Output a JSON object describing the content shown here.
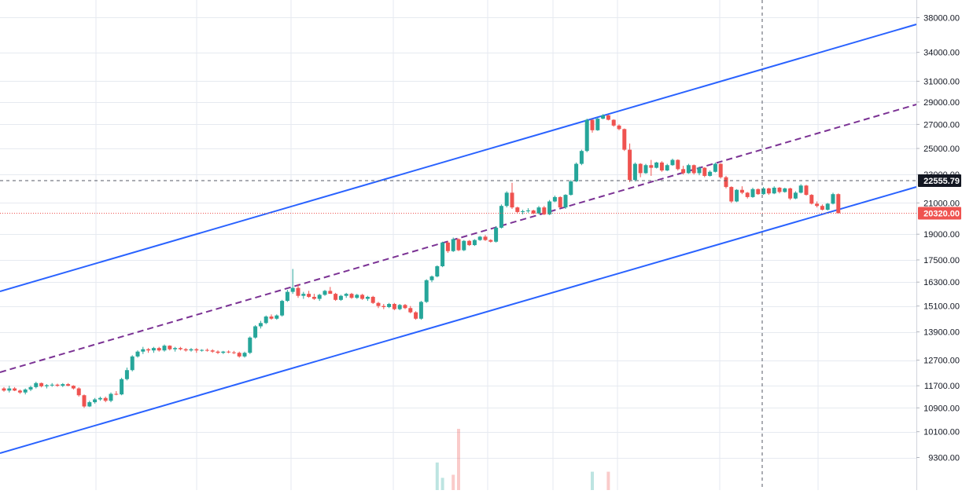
{
  "chart_data": {
    "type": "candlestick",
    "scale": "log",
    "grid": true,
    "ylim": [
      8900,
      40000
    ],
    "y_ticks": [
      "38000.00",
      "34000.00",
      "31000.00",
      "29000.00",
      "27000.00",
      "25000.00",
      "23000.00",
      "21000.00",
      "19000.00",
      "17500.00",
      "16300.00",
      "15100.00",
      "13900.00",
      "12700.00",
      "11700.00",
      "10900.00",
      "10100.00",
      "9300.00"
    ],
    "price_tags": {
      "crosshair": "22555.79",
      "last": "20320.00"
    },
    "colors": {
      "up": "#26a69a",
      "down": "#ef5350",
      "channel": "#2962ff",
      "midline": "#7b3294",
      "grid": "#e6eaf0",
      "crosshair": "#555a66",
      "last_line": "#ef5350",
      "axis_tag_bg": "#131722"
    },
    "candles": [
      [
        11600,
        11650,
        11480,
        11520
      ],
      [
        11520,
        11700,
        11450,
        11600
      ],
      [
        11600,
        11650,
        11500,
        11520
      ],
      [
        11520,
        11560,
        11400,
        11450
      ],
      [
        11450,
        11600,
        11380,
        11560
      ],
      [
        11560,
        11700,
        11500,
        11650
      ],
      [
        11650,
        11850,
        11600,
        11800
      ],
      [
        11800,
        11820,
        11640,
        11680
      ],
      [
        11680,
        11760,
        11600,
        11720
      ],
      [
        11720,
        11800,
        11660,
        11740
      ],
      [
        11740,
        11780,
        11660,
        11700
      ],
      [
        11700,
        11800,
        11650,
        11760
      ],
      [
        11760,
        11800,
        11680,
        11700
      ],
      [
        11700,
        11720,
        11560,
        11600
      ],
      [
        11600,
        11640,
        11300,
        11350
      ],
      [
        11350,
        11380,
        10900,
        10950
      ],
      [
        10950,
        11150,
        10930,
        11100
      ],
      [
        11100,
        11250,
        11050,
        11200
      ],
      [
        11200,
        11300,
        11150,
        11250
      ],
      [
        11250,
        11300,
        11100,
        11150
      ],
      [
        11150,
        11450,
        11100,
        11400
      ],
      [
        11400,
        11500,
        11350,
        11380
      ],
      [
        11380,
        12000,
        11350,
        11950
      ],
      [
        11950,
        12400,
        11900,
        12300
      ],
      [
        12300,
        12900,
        12250,
        12850
      ],
      [
        12850,
        13100,
        12800,
        13050
      ],
      [
        13050,
        13250,
        12950,
        13150
      ],
      [
        13150,
        13200,
        13000,
        13100
      ],
      [
        13100,
        13250,
        13000,
        13200
      ],
      [
        13200,
        13250,
        13050,
        13100
      ],
      [
        13100,
        13350,
        13050,
        13300
      ],
      [
        13300,
        13320,
        13100,
        13150
      ],
      [
        13150,
        13250,
        13050,
        13200
      ],
      [
        13200,
        13250,
        13100,
        13150
      ],
      [
        13150,
        13200,
        13050,
        13100
      ],
      [
        13100,
        13200,
        13050,
        13150
      ],
      [
        13150,
        13200,
        13000,
        13100
      ],
      [
        13100,
        13150,
        13050,
        13120
      ],
      [
        13120,
        13180,
        13050,
        13100
      ],
      [
        13100,
        13150,
        13000,
        13050
      ],
      [
        13050,
        13100,
        12950,
        13000
      ],
      [
        13000,
        13080,
        12950,
        13050
      ],
      [
        13050,
        13100,
        12980,
        13020
      ],
      [
        13020,
        13080,
        12950,
        13000
      ],
      [
        13000,
        13050,
        12800,
        12850
      ],
      [
        12850,
        13050,
        12800,
        13000
      ],
      [
        13000,
        13700,
        12950,
        13650
      ],
      [
        13650,
        14200,
        13600,
        14150
      ],
      [
        14150,
        14400,
        14050,
        14300
      ],
      [
        14300,
        14650,
        14250,
        14600
      ],
      [
        14600,
        14700,
        14450,
        14500
      ],
      [
        14500,
        14700,
        14450,
        14650
      ],
      [
        14650,
        15400,
        14600,
        15350
      ],
      [
        15350,
        15900,
        15300,
        15800
      ],
      [
        15800,
        17000,
        15700,
        16000
      ],
      [
        16000,
        16200,
        15500,
        15600
      ],
      [
        15600,
        15800,
        15450,
        15700
      ],
      [
        15700,
        15850,
        15500,
        15550
      ],
      [
        15550,
        15700,
        15400,
        15450
      ],
      [
        15450,
        15700,
        15350,
        15650
      ],
      [
        15650,
        15900,
        15600,
        15850
      ],
      [
        15850,
        16050,
        15800,
        15700
      ],
      [
        15700,
        15750,
        15350,
        15400
      ],
      [
        15400,
        15650,
        15350,
        15600
      ],
      [
        15600,
        15750,
        15500,
        15700
      ],
      [
        15700,
        15750,
        15450,
        15500
      ],
      [
        15500,
        15700,
        15450,
        15650
      ],
      [
        15650,
        15700,
        15400,
        15450
      ],
      [
        15450,
        15600,
        15350,
        15550
      ],
      [
        15550,
        15600,
        15200,
        15250
      ],
      [
        15250,
        15300,
        15000,
        15100
      ],
      [
        15100,
        15200,
        14950,
        15050
      ],
      [
        15050,
        15250,
        15000,
        15200
      ],
      [
        15200,
        15250,
        14900,
        14950
      ],
      [
        14950,
        15200,
        14900,
        15150
      ],
      [
        15150,
        15200,
        14950,
        15000
      ],
      [
        15000,
        15100,
        14750,
        14800
      ],
      [
        14800,
        14850,
        14450,
        14500
      ],
      [
        14500,
        15350,
        14450,
        15300
      ],
      [
        15300,
        16450,
        15250,
        16400
      ],
      [
        16400,
        16650,
        16300,
        16600
      ],
      [
        16600,
        17200,
        16550,
        17150
      ],
      [
        17150,
        18550,
        17100,
        18500
      ],
      [
        18500,
        18600,
        17900,
        18000
      ],
      [
        18000,
        18800,
        17950,
        18700
      ],
      [
        18700,
        18750,
        18000,
        18050
      ],
      [
        18050,
        18650,
        18000,
        18600
      ],
      [
        18600,
        18650,
        18300,
        18350
      ],
      [
        18350,
        18700,
        18300,
        18650
      ],
      [
        18650,
        18900,
        18600,
        18850
      ],
      [
        18850,
        18950,
        18600,
        18650
      ],
      [
        18650,
        18700,
        18500,
        18550
      ],
      [
        18550,
        19500,
        18500,
        19400
      ],
      [
        19400,
        20900,
        19350,
        20800
      ],
      [
        20800,
        21800,
        20700,
        21700
      ],
      [
        21700,
        22400,
        20600,
        20700
      ],
      [
        20700,
        20750,
        20300,
        20400
      ],
      [
        20400,
        20550,
        20250,
        20450
      ],
      [
        20450,
        20650,
        20350,
        20500
      ],
      [
        20500,
        20550,
        20250,
        20300
      ],
      [
        20300,
        20800,
        20250,
        20700
      ],
      [
        20700,
        20800,
        20200,
        20250
      ],
      [
        20250,
        21200,
        20200,
        21100
      ],
      [
        21100,
        21500,
        21050,
        21400
      ],
      [
        21400,
        21450,
        20650,
        20700
      ],
      [
        20700,
        21600,
        20600,
        21550
      ],
      [
        21550,
        22600,
        21500,
        22500
      ],
      [
        22500,
        23900,
        22450,
        23800
      ],
      [
        23800,
        24900,
        23700,
        24800
      ],
      [
        24800,
        27500,
        24700,
        27400
      ],
      [
        27400,
        27450,
        26300,
        26500
      ],
      [
        26500,
        27600,
        26450,
        27500
      ],
      [
        27500,
        27900,
        27450,
        27800
      ],
      [
        27800,
        27850,
        27350,
        27400
      ],
      [
        27400,
        27450,
        26800,
        26900
      ],
      [
        26900,
        27000,
        26500,
        26600
      ],
      [
        26600,
        26650,
        24800,
        24900
      ],
      [
        24900,
        25400,
        22450,
        22600
      ],
      [
        22600,
        23900,
        22500,
        23800
      ],
      [
        23800,
        23850,
        22800,
        23100
      ],
      [
        23100,
        23800,
        23050,
        23700
      ],
      [
        23700,
        24100,
        22900,
        23500
      ],
      [
        23500,
        23950,
        23450,
        23900
      ],
      [
        23900,
        24000,
        23200,
        23300
      ],
      [
        23300,
        23800,
        23250,
        23700
      ],
      [
        23700,
        24200,
        23650,
        24100
      ],
      [
        24100,
        24150,
        23300,
        23400
      ],
      [
        23400,
        23650,
        23000,
        23100
      ],
      [
        23100,
        23800,
        23050,
        23700
      ],
      [
        23700,
        23750,
        23000,
        23100
      ],
      [
        23100,
        23600,
        22950,
        23500
      ],
      [
        23500,
        23550,
        22800,
        22900
      ],
      [
        22900,
        23300,
        22850,
        23200
      ],
      [
        23200,
        23900,
        23150,
        23800
      ],
      [
        23800,
        23850,
        22700,
        22800
      ],
      [
        22800,
        22900,
        22000,
        22100
      ],
      [
        22100,
        22150,
        21000,
        21100
      ],
      [
        21100,
        21950,
        21050,
        21900
      ],
      [
        21900,
        22150,
        21600,
        21700
      ],
      [
        21700,
        21750,
        21300,
        21400
      ],
      [
        21400,
        22050,
        21350,
        21950
      ],
      [
        21950,
        22000,
        21550,
        21600
      ],
      [
        21600,
        22100,
        21550,
        22000
      ],
      [
        22000,
        22050,
        21550,
        21650
      ],
      [
        21650,
        22150,
        21600,
        22050
      ],
      [
        22050,
        22100,
        21650,
        21750
      ],
      [
        21750,
        22050,
        21700,
        22000
      ],
      [
        22000,
        22050,
        21200,
        21300
      ],
      [
        21300,
        21800,
        21250,
        21700
      ],
      [
        21700,
        22300,
        21650,
        22200
      ],
      [
        22200,
        22250,
        21500,
        21550
      ],
      [
        21550,
        21600,
        20900,
        20950
      ],
      [
        20950,
        21100,
        20700,
        20800
      ],
      [
        20800,
        20900,
        20500,
        20550
      ],
      [
        20550,
        21000,
        20500,
        20950
      ],
      [
        20950,
        21700,
        20900,
        21600
      ],
      [
        21600,
        21650,
        20400,
        20320
      ]
    ],
    "volume": [
      {
        "i": 81,
        "v": 0.45,
        "dir": "up"
      },
      {
        "i": 82,
        "v": 0.2,
        "dir": "up"
      },
      {
        "i": 84,
        "v": 0.25,
        "dir": "down"
      },
      {
        "i": 85,
        "v": 1.0,
        "dir": "down"
      },
      {
        "i": 110,
        "v": 0.3,
        "dir": "up"
      },
      {
        "i": 113,
        "v": 0.3,
        "dir": "down"
      }
    ]
  }
}
